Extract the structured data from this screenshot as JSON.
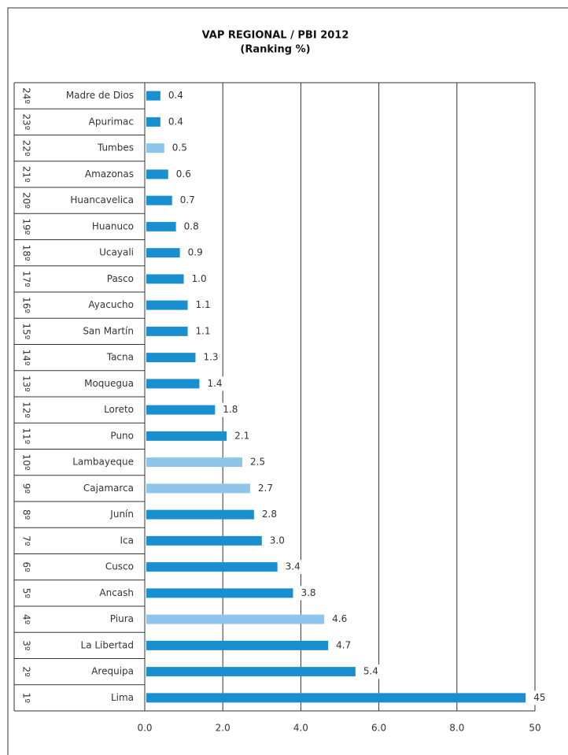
{
  "chart_data": {
    "type": "barh",
    "title": "VAP REGIONAL / PBI 2012",
    "subtitle": "(Ranking %)",
    "ranks": [
      "24º",
      "23º",
      "22º",
      "21º",
      "20º",
      "19º",
      "18º",
      "17º",
      "16º",
      "15º",
      "14º",
      "13º",
      "12º",
      "11º",
      "10º",
      "9º",
      "8º",
      "7º",
      "6º",
      "5º",
      "4º",
      "3º",
      "2º",
      "1º"
    ],
    "categories": [
      "Madre de Dios",
      "Apurimac",
      "Tumbes",
      "Amazonas",
      "Huancavelica",
      "Huanuco",
      "Ucayali",
      "Pasco",
      "Ayacucho",
      "San Martín",
      "Tacna",
      "Moquegua",
      "Loreto",
      "Puno",
      "Lambayeque",
      "Cajamarca",
      "Junín",
      "Ica",
      "Cusco",
      "Ancash",
      "Piura",
      "La Libertad",
      "Arequipa",
      "Lima"
    ],
    "values": [
      0.4,
      0.4,
      0.5,
      0.6,
      0.7,
      0.8,
      0.9,
      1.0,
      1.1,
      1.1,
      1.3,
      1.4,
      1.8,
      2.1,
      2.5,
      2.7,
      2.8,
      3.0,
      3.4,
      3.8,
      4.6,
      4.7,
      5.4,
      45
    ],
    "value_labels": [
      "0.4",
      "0.4",
      "0.5",
      "0.6",
      "0.7",
      "0.8",
      "0.9",
      "1.0",
      "1.1",
      "1.1",
      "1.3",
      "1.4",
      "1.8",
      "2.1",
      "2.5",
      "2.7",
      "2.8",
      "3.0",
      "3.4",
      "3.8",
      "4.6",
      "4.7",
      "5.4",
      "45"
    ],
    "colors": [
      "#1a8fd0",
      "#1a8fd0",
      "#8ec5ea",
      "#1a8fd0",
      "#1a8fd0",
      "#1a8fd0",
      "#1a8fd0",
      "#1a8fd0",
      "#1a8fd0",
      "#1a8fd0",
      "#1a8fd0",
      "#1a8fd0",
      "#1a8fd0",
      "#1a8fd0",
      "#8ec5ea",
      "#8ec5ea",
      "#1a8fd0",
      "#1a8fd0",
      "#1a8fd0",
      "#1a8fd0",
      "#8ec5ea",
      "#1a8fd0",
      "#1a8fd0",
      "#1a8fd0"
    ],
    "xlim": [
      0,
      50
    ],
    "xticks": [
      {
        "value": 0,
        "label": "0.0"
      },
      {
        "value": 2,
        "label": "2.0"
      },
      {
        "value": 4,
        "label": "4.0"
      },
      {
        "value": 6,
        "label": "6.0"
      },
      {
        "value": 8,
        "label": "8.0"
      },
      50
    ],
    "grid": true
  }
}
